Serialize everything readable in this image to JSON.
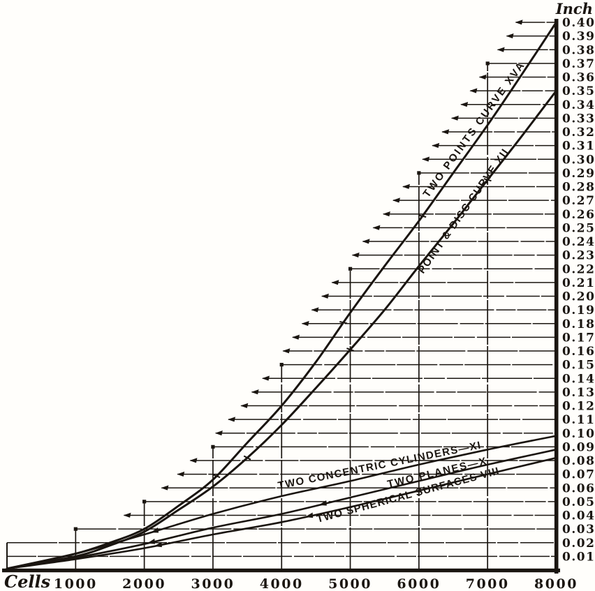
{
  "figure": {
    "background": "#fffefb",
    "ink": "#1a1510"
  },
  "chart_data": {
    "type": "line",
    "title": "",
    "xlabel": "Cells",
    "ylabel": "Inch",
    "xlim": [
      0,
      8000
    ],
    "ylim": [
      0,
      0.4
    ],
    "grid": "staircase envelope following topmost curve; horizontals every 0.01 inch ending in left arrow ticks, verticals every 1000 cells",
    "legend_position": "labels along curves",
    "x_ticks": [
      1000,
      2000,
      3000,
      4000,
      5000,
      6000,
      7000,
      8000
    ],
    "y_tick_labels": [
      "0.40",
      "0.39",
      "0.38",
      "0.37",
      "0.36",
      "0.35",
      "0.34",
      "0.33",
      "0.32",
      "0.31",
      "0.30",
      "0.29",
      "0.28",
      "0.27",
      "0.26",
      "0.25",
      "0.24",
      "0.23",
      "0.22",
      "0.21",
      "0.20",
      "0.19",
      "0.18",
      "0.17",
      "0.16",
      "0.15",
      "0.14",
      "0.13",
      "0.12",
      "0.11",
      "0.10",
      "0.09",
      "0.08",
      "0.07",
      "0.06",
      "0.05",
      "0.04",
      "0.03",
      "0.02",
      "0.01"
    ],
    "staircase_vertical_tops": {
      "1000": 0.03,
      "2000": 0.05,
      "3000": 0.09,
      "4000": 0.15,
      "5000": 0.22,
      "6000": 0.29,
      "7000": 0.37
    },
    "left_stub_top": 0.02,
    "series": [
      {
        "name": "curve-two-points-xva",
        "label": "TWO POINTS CURVE XVA",
        "points": [
          [
            0,
            0.001
          ],
          [
            1000,
            0.012
          ],
          [
            1500,
            0.02
          ],
          [
            2000,
            0.03
          ],
          [
            2500,
            0.047
          ],
          [
            3000,
            0.066
          ],
          [
            3500,
            0.093
          ],
          [
            4000,
            0.12
          ],
          [
            4500,
            0.152
          ],
          [
            5000,
            0.188
          ],
          [
            5500,
            0.222
          ],
          [
            6000,
            0.255
          ],
          [
            6500,
            0.29
          ],
          [
            7000,
            0.325
          ],
          [
            7500,
            0.362
          ],
          [
            8000,
            0.4
          ]
        ]
      },
      {
        "name": "curve-point-and-disc-xii",
        "label": "POINT & DISC CURVE XII",
        "points": [
          [
            0,
            0.001
          ],
          [
            1000,
            0.01
          ],
          [
            1500,
            0.018
          ],
          [
            2000,
            0.028
          ],
          [
            2500,
            0.044
          ],
          [
            3000,
            0.061
          ],
          [
            3500,
            0.082
          ],
          [
            4000,
            0.106
          ],
          [
            4500,
            0.133
          ],
          [
            5000,
            0.161
          ],
          [
            5500,
            0.19
          ],
          [
            6000,
            0.222
          ],
          [
            6500,
            0.253
          ],
          [
            7000,
            0.285
          ],
          [
            7500,
            0.317
          ],
          [
            8000,
            0.35
          ]
        ]
      },
      {
        "name": "curve-two-concentric-cylinders-xi",
        "label": "TWO CONCENTRIC CYLINDERS—XI",
        "points": [
          [
            0,
            0.001
          ],
          [
            1000,
            0.012
          ],
          [
            2000,
            0.026
          ],
          [
            3000,
            0.041
          ],
          [
            4000,
            0.054
          ],
          [
            5000,
            0.065
          ],
          [
            6000,
            0.077
          ],
          [
            7000,
            0.088
          ],
          [
            8000,
            0.098
          ]
        ]
      },
      {
        "name": "curve-two-planes-x",
        "label": "TWO PLANES—X",
        "points": [
          [
            0,
            0.001
          ],
          [
            1000,
            0.009
          ],
          [
            2000,
            0.019
          ],
          [
            3000,
            0.031
          ],
          [
            4000,
            0.041
          ],
          [
            5000,
            0.053
          ],
          [
            6000,
            0.065
          ],
          [
            7000,
            0.077
          ],
          [
            8000,
            0.088
          ]
        ]
      },
      {
        "name": "curve-two-spherical-surfaces-viii",
        "label": "TWO SPHERICAL SURFACES VIII",
        "points": [
          [
            0,
            0.001
          ],
          [
            1000,
            0.008
          ],
          [
            2000,
            0.016
          ],
          [
            3000,
            0.026
          ],
          [
            4000,
            0.035
          ],
          [
            5000,
            0.046
          ],
          [
            6000,
            0.058
          ],
          [
            7000,
            0.07
          ],
          [
            8000,
            0.082
          ]
        ]
      }
    ]
  }
}
